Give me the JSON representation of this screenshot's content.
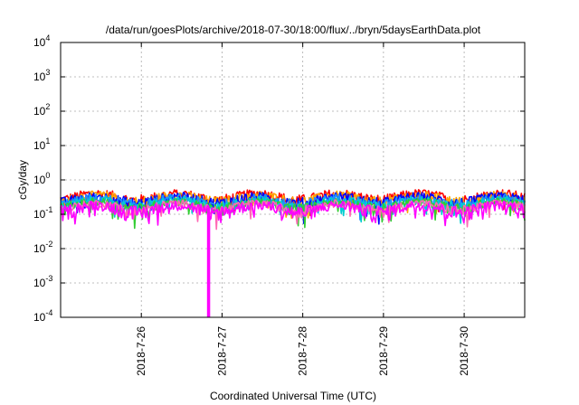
{
  "chart_data": {
    "type": "line",
    "title": "/data/run/goesPlots/archive/2018-07-30/18:00/flux/../bryn/5daysEarthData.plot",
    "xlabel": "Coordinated Universal Time (UTC)",
    "ylabel": "cGy/day",
    "yscale": "log",
    "ylim": [
      0.0001,
      10000
    ],
    "y_ticks": [
      {
        "value": 0.0001,
        "label": "10",
        "exp": "-4"
      },
      {
        "value": 0.001,
        "label": "10",
        "exp": "-3"
      },
      {
        "value": 0.01,
        "label": "10",
        "exp": "-2"
      },
      {
        "value": 0.1,
        "label": "10",
        "exp": "-1"
      },
      {
        "value": 1,
        "label": "10",
        "exp": "0"
      },
      {
        "value": 10,
        "label": "10",
        "exp": "1"
      },
      {
        "value": 100,
        "label": "10",
        "exp": "2"
      },
      {
        "value": 1000,
        "label": "10",
        "exp": "3"
      },
      {
        "value": 10000,
        "label": "10",
        "exp": "4"
      }
    ],
    "xlim": [
      "2018-07-25 00:00",
      "2018-07-30 18:00"
    ],
    "x_ticks": [
      {
        "value": "2018-07-26 00:00",
        "label": "2018-7-26"
      },
      {
        "value": "2018-07-27 00:00",
        "label": "2018-7-27"
      },
      {
        "value": "2018-07-28 00:00",
        "label": "2018-7-28"
      },
      {
        "value": "2018-07-29 00:00",
        "label": "2018-7-29"
      },
      {
        "value": "2018-07-30 00:00",
        "label": "2018-7-30"
      }
    ],
    "grid": true,
    "legend": "none",
    "dropout": {
      "time": "2018-07-26 20:00",
      "value": 0.0001
    },
    "series": [
      {
        "color": "#ff0000",
        "baseline": 0.33,
        "amplitude": 0.12
      },
      {
        "color": "#ffa500",
        "baseline": 0.3,
        "amplitude": 0.1
      },
      {
        "color": "#0000ff",
        "baseline": 0.27,
        "amplitude": 0.1
      },
      {
        "color": "#1e90ff",
        "baseline": 0.24,
        "amplitude": 0.09
      },
      {
        "color": "#00ced1",
        "baseline": 0.21,
        "amplitude": 0.07
      },
      {
        "color": "#32cd32",
        "baseline": 0.19,
        "amplitude": 0.06
      },
      {
        "color": "#ff69b4",
        "baseline": 0.17,
        "amplitude": 0.05
      },
      {
        "color": "#ff00ff",
        "baseline": 0.15,
        "amplitude": 0.06
      }
    ]
  }
}
